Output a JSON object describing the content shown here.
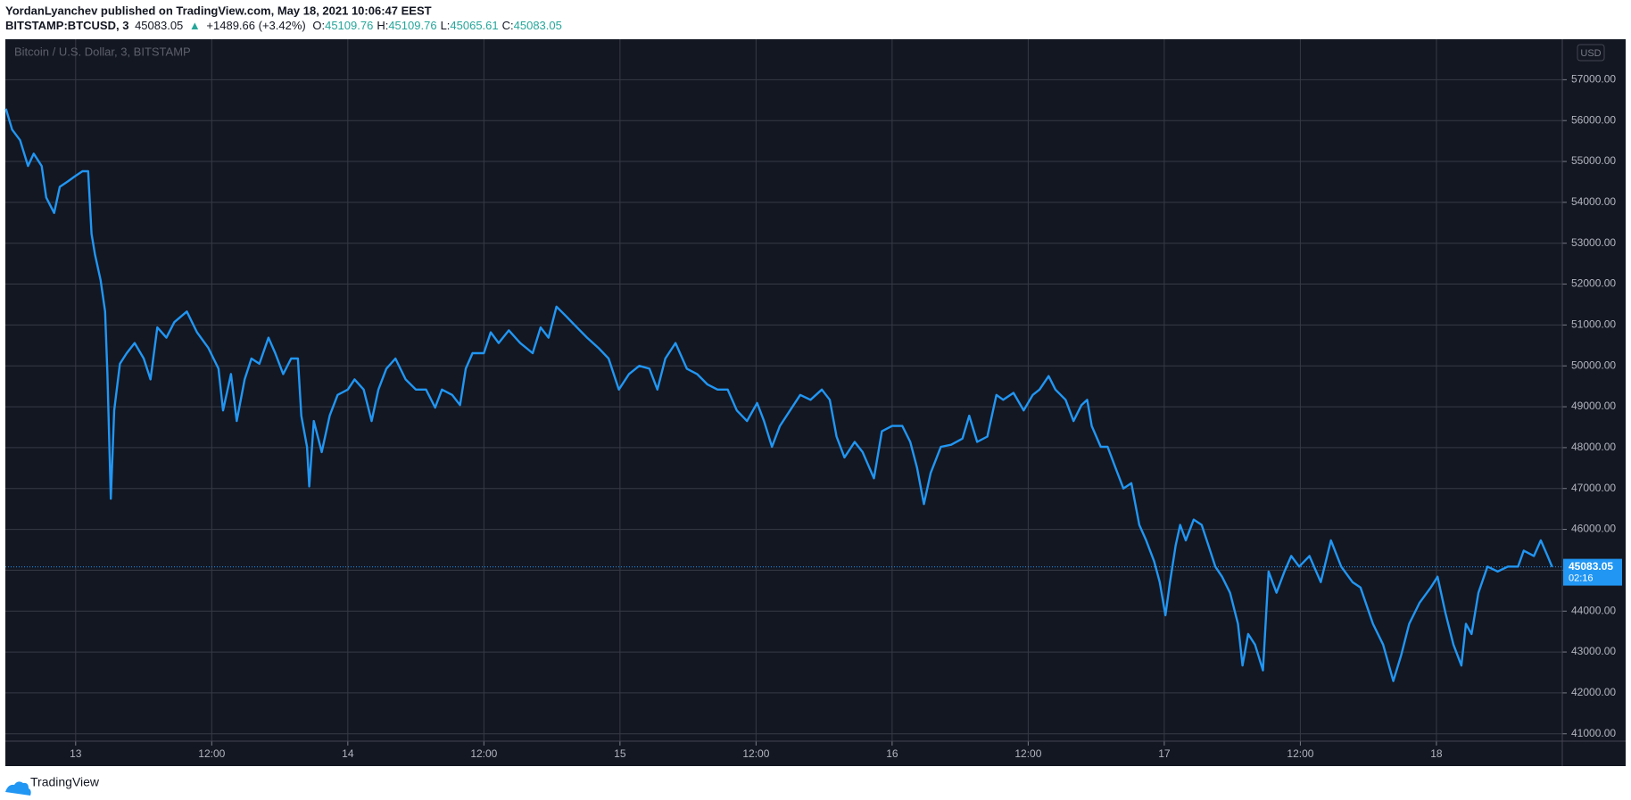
{
  "header": {
    "author_line": "YordanLyanchev published on TradingView.com, May 18, 2021 10:06:47 EEST",
    "symbol": "BITSTAMP:BTCUSD, 3",
    "last": "45083.05",
    "arrow": "▲",
    "change": "+1489.66 (+3.42%)",
    "ohlc": [
      {
        "label": "O:",
        "value": "45109.76"
      },
      {
        "label": "H:",
        "value": "45109.76"
      },
      {
        "label": "L:",
        "value": "45065.61"
      },
      {
        "label": "C:",
        "value": "45083.05"
      }
    ]
  },
  "footer": {
    "brand": "TradingView"
  },
  "chart_data": {
    "type": "line",
    "legend_label": "Bitcoin / U.S. Dollar, 3, BITSTAMP",
    "currency": "USD",
    "grid": true,
    "x": [
      -6.15,
      -5.6,
      -4.9,
      -4.2,
      -3.7,
      -3.0,
      -2.6,
      -1.9,
      -1.4,
      -0.7,
      -0.1,
      0.6,
      1.1,
      1.4,
      1.7,
      2.2,
      2.6,
      2.8,
      3.1,
      3.4,
      3.9,
      4.5,
      5.2,
      6.0,
      6.6,
      7.2,
      8.0,
      8.7,
      9.8,
      10.7,
      11.7,
      12.6,
      13.0,
      13.7,
      14.2,
      14.9,
      15.5,
      16.2,
      17.0,
      17.6,
      18.3,
      19.0,
      19.6,
      19.9,
      20.4,
      20.6,
      21.0,
      21.7,
      22.4,
      23.1,
      24.0,
      24.6,
      25.4,
      26.1,
      26.7,
      27.4,
      28.2,
      29.1,
      30.0,
      30.9,
      31.7,
      32.3,
      33.2,
      33.9,
      34.4,
      35.0,
      36.0,
      36.6,
      37.3,
      38.2,
      39.2,
      40.3,
      41.0,
      41.7,
      42.4,
      43.3,
      44.2,
      45.1,
      46.1,
      47.0,
      47.9,
      48.8,
      49.7,
      50.6,
      51.3,
      52.0,
      52.9,
      53.9,
      54.8,
      55.7,
      56.6,
      57.5,
      58.3,
      59.2,
      60.1,
      60.7,
      61.4,
      62.1,
      63.0,
      63.9,
      64.8,
      65.8,
      66.5,
      67.1,
      67.8,
      68.7,
      69.4,
      70.4,
      71.1,
      72.0,
      72.9,
      73.6,
      74.2,
      74.8,
      75.4,
      76.3,
      77.2,
      78.2,
      78.8,
      79.5,
      80.4,
      81.2,
      81.8,
      82.7,
      83.6,
      84.4,
      85.0,
      85.8,
      86.4,
      87.3,
      88.0,
      88.7,
      89.2,
      89.6,
      90.4,
      91.0,
      91.7,
      92.4,
      93.1,
      93.8,
      94.4,
      95.1,
      95.6,
      96.1,
      96.5,
      97.0,
      97.4,
      97.9,
      98.6,
      99.3,
      99.9,
      100.5,
      101.1,
      101.8,
      102.5,
      102.9,
      103.4,
      104.0,
      104.7,
      105.2,
      105.9,
      106.6,
      107.2,
      107.9,
      108.8,
      109.8,
      110.7,
      111.6,
      112.6,
      113.3,
      114.4,
      115.3,
      116.2,
      116.9,
      117.6,
      118.5,
      119.5,
      120.1,
      120.8,
      121.5,
      122.2,
      122.6,
      123.1,
      123.7,
      124.5,
      125.4,
      126.3,
      127.2,
      127.7,
      128.6,
      129.2,
      129.8,
      130.2
    ],
    "series": [
      {
        "name": "Bitcoin / U.S. Dollar, 3, BITSTAMP",
        "color": "#2196f3",
        "values": [
          56290,
          55780,
          55520,
          54890,
          55190,
          54890,
          54120,
          53740,
          54380,
          54510,
          54630,
          54760,
          54760,
          53230,
          52730,
          52090,
          51330,
          49800,
          46750,
          48910,
          50050,
          50310,
          50560,
          50180,
          49670,
          50940,
          50690,
          51070,
          51330,
          50820,
          50440,
          49930,
          48910,
          49800,
          48650,
          49670,
          50180,
          50050,
          50690,
          50310,
          49800,
          50180,
          50180,
          48780,
          48020,
          47050,
          48650,
          47890,
          48780,
          49290,
          49420,
          49670,
          49420,
          48650,
          49420,
          49930,
          50180,
          49670,
          49420,
          49420,
          48980,
          49420,
          49290,
          49040,
          49930,
          50310,
          50310,
          50820,
          50560,
          50870,
          50560,
          50310,
          50940,
          50690,
          51450,
          51200,
          50940,
          50690,
          50440,
          50180,
          49420,
          49800,
          50000,
          49930,
          49420,
          50180,
          50560,
          49930,
          49800,
          49550,
          49420,
          49420,
          48910,
          48650,
          49090,
          48650,
          48020,
          48530,
          48910,
          49290,
          49170,
          49420,
          49170,
          48270,
          47760,
          48140,
          47890,
          47250,
          48400,
          48530,
          48530,
          48140,
          47510,
          46620,
          47380,
          48020,
          48070,
          48220,
          48780,
          48140,
          48270,
          49290,
          49170,
          49340,
          48910,
          49290,
          49420,
          49750,
          49420,
          49170,
          48650,
          49040,
          49170,
          48530,
          48020,
          48020,
          47510,
          47000,
          47130,
          46110,
          45730,
          45220,
          44710,
          43900,
          44710,
          45600,
          46110,
          45730,
          46240,
          46110,
          45600,
          45090,
          44840,
          44450,
          43690,
          42670,
          43440,
          43180,
          42550,
          44970,
          44450,
          44970,
          45350,
          45090,
          45350,
          44710,
          45730,
          45090,
          44710,
          44580,
          43690,
          43180,
          42290,
          42930,
          43690,
          44200,
          44580,
          44840,
          43950,
          43180,
          42670,
          43690,
          43440,
          44450,
          45090,
          44970,
          45090,
          45090,
          45480,
          45350,
          45730,
          45350,
          45083.05
        ]
      }
    ],
    "last_price": 45083.05,
    "countdown": "02:16",
    "xlim": [
      -6.2,
      131.1
    ],
    "ylim": [
      40820,
      57990
    ],
    "xticks": [
      {
        "value": 0,
        "label": "13"
      },
      {
        "value": 12,
        "label": "12:00"
      },
      {
        "value": 24,
        "label": "14"
      },
      {
        "value": 36,
        "label": "12:00"
      },
      {
        "value": 48,
        "label": "15"
      },
      {
        "value": 60,
        "label": "12:00"
      },
      {
        "value": 72,
        "label": "16"
      },
      {
        "value": 84,
        "label": "12:00"
      },
      {
        "value": 96,
        "label": "17"
      },
      {
        "value": 108,
        "label": "12:00"
      },
      {
        "value": 120,
        "label": "18"
      }
    ],
    "yticks": [
      {
        "value": 41000,
        "label": "41000.00"
      },
      {
        "value": 42000,
        "label": "42000.00"
      },
      {
        "value": 43000,
        "label": "43000.00"
      },
      {
        "value": 44000,
        "label": "44000.00"
      },
      {
        "value": 45000,
        "label": "45000.00"
      },
      {
        "value": 46000,
        "label": "46000.00"
      },
      {
        "value": 47000,
        "label": "47000.00"
      },
      {
        "value": 48000,
        "label": "48000.00"
      },
      {
        "value": 49000,
        "label": "49000.00"
      },
      {
        "value": 50000,
        "label": "50000.00"
      },
      {
        "value": 51000,
        "label": "51000.00"
      },
      {
        "value": 52000,
        "label": "52000.00"
      },
      {
        "value": 53000,
        "label": "53000.00"
      },
      {
        "value": 54000,
        "label": "54000.00"
      },
      {
        "value": 55000,
        "label": "55000.00"
      },
      {
        "value": 56000,
        "label": "56000.00"
      },
      {
        "value": 57000,
        "label": "57000.00"
      }
    ]
  }
}
